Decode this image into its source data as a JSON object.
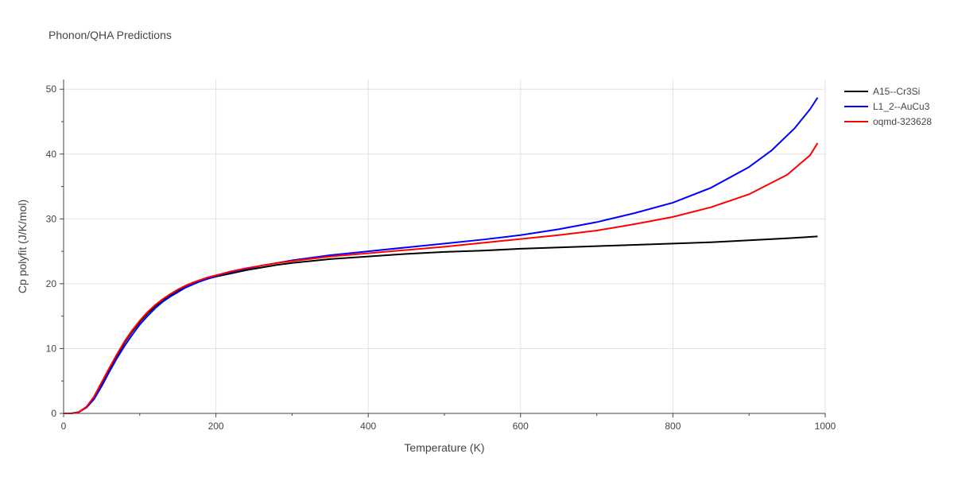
{
  "chart_data": {
    "type": "line",
    "title": "Phonon/QHA Predictions",
    "xlabel": "Temperature (K)",
    "ylabel": "Cp polyfit (J/K/mol)",
    "xlim": [
      0,
      1000
    ],
    "ylim": [
      0,
      51.5
    ],
    "xticks": [
      0,
      200,
      400,
      600,
      800,
      1000
    ],
    "yticks": [
      0,
      10,
      20,
      30,
      40,
      50
    ],
    "grid": true,
    "legend_position": "top-right",
    "series": [
      {
        "name": "A15--Cr3Si",
        "color": "#000000",
        "x": [
          0,
          10,
          20,
          30,
          40,
          50,
          60,
          70,
          80,
          90,
          100,
          110,
          120,
          130,
          140,
          150,
          160,
          170,
          180,
          190,
          200,
          220,
          240,
          260,
          280,
          300,
          350,
          400,
          450,
          500,
          550,
          600,
          650,
          700,
          750,
          800,
          850,
          900,
          950,
          990
        ],
        "y": [
          0,
          0,
          0.2,
          1.0,
          2.5,
          4.6,
          6.8,
          8.9,
          10.9,
          12.6,
          14.1,
          15.4,
          16.5,
          17.4,
          18.2,
          18.9,
          19.5,
          20.0,
          20.4,
          20.8,
          21.1,
          21.6,
          22.1,
          22.5,
          22.9,
          23.2,
          23.8,
          24.2,
          24.6,
          24.9,
          25.1,
          25.4,
          25.6,
          25.8,
          26.0,
          26.2,
          26.4,
          26.7,
          27.0,
          27.3
        ]
      },
      {
        "name": "L1_2--AuCu3",
        "color": "#0000ff",
        "x": [
          0,
          10,
          20,
          30,
          40,
          50,
          60,
          70,
          80,
          90,
          100,
          110,
          120,
          130,
          140,
          150,
          160,
          170,
          180,
          190,
          200,
          220,
          240,
          260,
          280,
          300,
          350,
          400,
          450,
          500,
          550,
          600,
          650,
          700,
          750,
          800,
          850,
          900,
          930,
          960,
          980,
          990
        ],
        "y": [
          0,
          0,
          0.2,
          0.9,
          2.2,
          4.2,
          6.4,
          8.5,
          10.4,
          12.1,
          13.7,
          15.0,
          16.2,
          17.2,
          18.0,
          18.7,
          19.4,
          19.9,
          20.4,
          20.8,
          21.2,
          21.8,
          22.3,
          22.8,
          23.2,
          23.6,
          24.4,
          25.0,
          25.6,
          26.2,
          26.8,
          27.5,
          28.4,
          29.5,
          30.9,
          32.5,
          34.8,
          38.0,
          40.6,
          44.0,
          46.9,
          48.7
        ]
      },
      {
        "name": "oqmd-323628",
        "color": "#ff0000",
        "x": [
          0,
          10,
          20,
          30,
          40,
          50,
          60,
          70,
          80,
          90,
          100,
          110,
          120,
          130,
          140,
          150,
          160,
          170,
          180,
          190,
          200,
          220,
          240,
          260,
          280,
          300,
          350,
          400,
          450,
          500,
          550,
          600,
          650,
          700,
          750,
          800,
          850,
          900,
          950,
          980,
          990
        ],
        "y": [
          0,
          0,
          0.2,
          1.0,
          2.6,
          4.8,
          7.0,
          9.1,
          11.1,
          12.8,
          14.3,
          15.6,
          16.7,
          17.6,
          18.4,
          19.1,
          19.7,
          20.2,
          20.6,
          21.0,
          21.3,
          21.9,
          22.4,
          22.8,
          23.2,
          23.5,
          24.2,
          24.7,
          25.2,
          25.7,
          26.3,
          26.9,
          27.5,
          28.2,
          29.2,
          30.3,
          31.8,
          33.8,
          36.8,
          39.8,
          41.7
        ]
      }
    ]
  }
}
